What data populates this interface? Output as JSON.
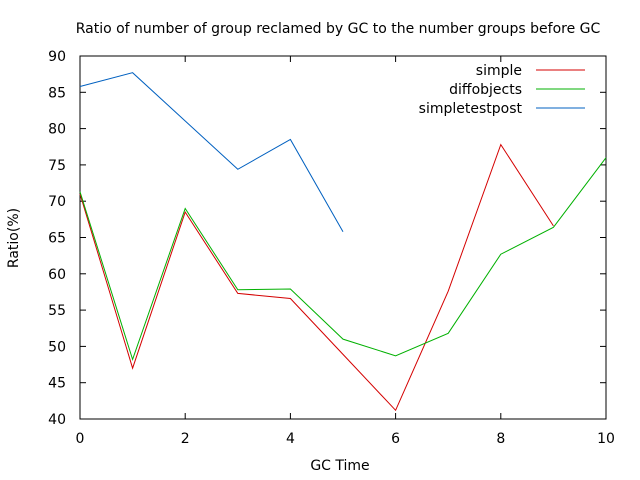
{
  "chart_data": {
    "type": "line",
    "title": "Ratio of number of group reclamed by GC to the number groups before GC",
    "xlabel": "GC Time",
    "ylabel": "Ratio(%)",
    "xlim": [
      0,
      10
    ],
    "ylim": [
      40,
      90
    ],
    "xticks": [
      0,
      2,
      4,
      6,
      8,
      10
    ],
    "yticks": [
      40,
      45,
      50,
      55,
      60,
      65,
      70,
      75,
      80,
      85,
      90
    ],
    "grid": false,
    "legend_position": "top-right",
    "series": [
      {
        "name": "simple",
        "color": "#d40000",
        "x": [
          0,
          1,
          2,
          3,
          4,
          5,
          6,
          7,
          8,
          9
        ],
        "y": [
          71.0,
          47.0,
          68.5,
          57.3,
          56.6,
          48.9,
          41.2,
          57.6,
          77.8,
          66.6
        ]
      },
      {
        "name": "diffobjects",
        "color": "#00b000",
        "x": [
          0,
          1,
          2,
          3,
          4,
          5,
          6,
          7,
          8,
          9,
          10
        ],
        "y": [
          71.3,
          48.2,
          69.0,
          57.8,
          57.9,
          51.0,
          48.7,
          51.8,
          62.7,
          66.4,
          76.0
        ]
      },
      {
        "name": "simpletestpost",
        "color": "#0060c0",
        "x": [
          0,
          1,
          3,
          4,
          5
        ],
        "y": [
          85.8,
          87.7,
          74.4,
          78.5,
          65.8
        ]
      }
    ]
  }
}
